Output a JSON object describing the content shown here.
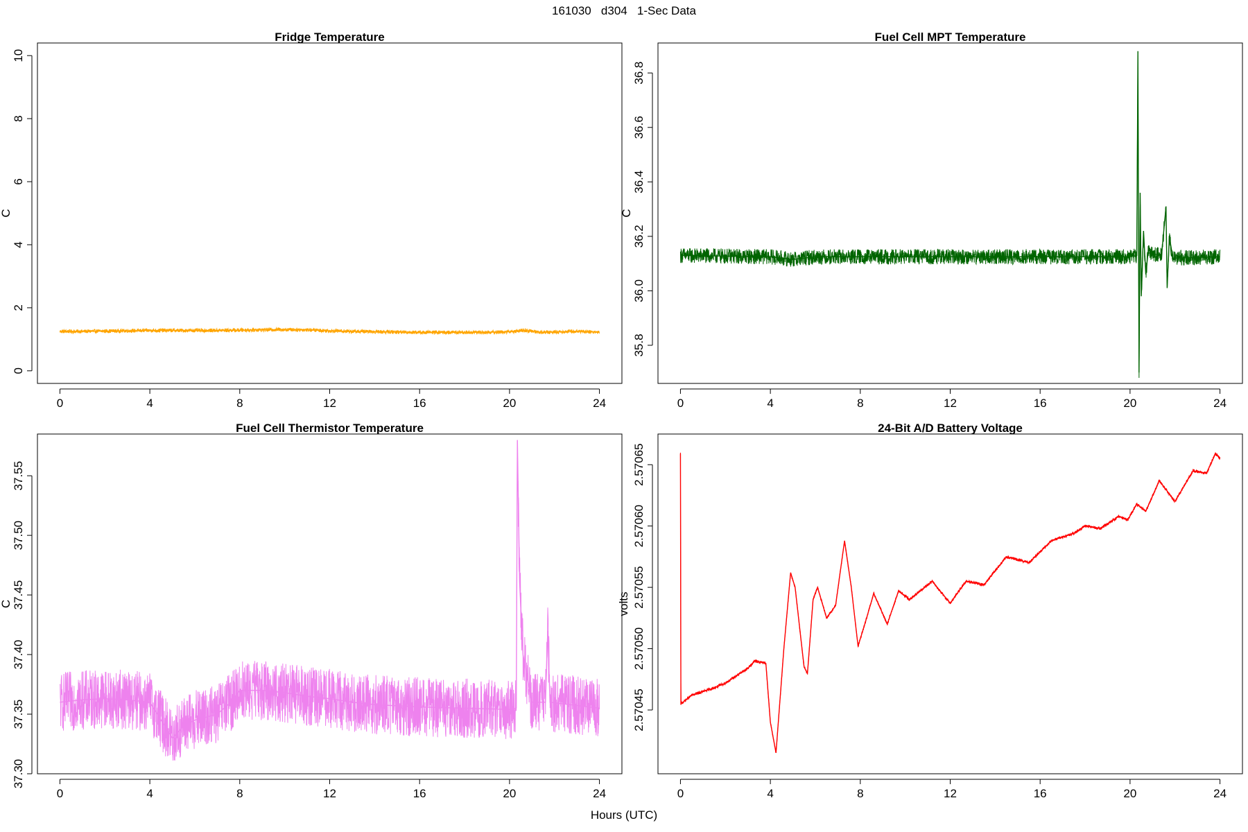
{
  "main_title": "161030   d304   1-Sec Data",
  "x_axis_title": "Hours (UTC)",
  "colors": {
    "fridge": "#FFA500",
    "mpt": "#006400",
    "thermistor": "#EE82EE",
    "battery": "#FF0000",
    "axis": "#000000"
  },
  "chart_data": [
    {
      "type": "line",
      "title": "Fridge Temperature",
      "ylabel": "C",
      "xlabel": "",
      "xlim": [
        -1.0,
        25.0
      ],
      "ylim": [
        -0.4,
        10.4
      ],
      "xticks": [
        0,
        4,
        8,
        12,
        16,
        20,
        24
      ],
      "yticks": [
        0,
        2,
        4,
        6,
        8,
        10
      ],
      "ytick_labels": [
        "0",
        "2",
        "4",
        "6",
        "8",
        "10"
      ],
      "grid": false,
      "series": [
        {
          "color": "#FFA500",
          "points": [
            [
              0,
              1.25
            ],
            [
              1,
              1.25
            ],
            [
              2,
              1.26
            ],
            [
              3,
              1.27
            ],
            [
              4,
              1.28
            ],
            [
              5,
              1.28
            ],
            [
              6,
              1.28
            ],
            [
              7,
              1.28
            ],
            [
              8,
              1.29
            ],
            [
              9,
              1.3
            ],
            [
              10,
              1.31
            ],
            [
              11,
              1.3
            ],
            [
              12,
              1.27
            ],
            [
              13,
              1.25
            ],
            [
              14,
              1.24
            ],
            [
              15,
              1.23
            ],
            [
              16,
              1.22
            ],
            [
              17,
              1.22
            ],
            [
              18,
              1.22
            ],
            [
              19,
              1.22
            ],
            [
              20,
              1.24
            ],
            [
              20.7,
              1.28
            ],
            [
              21.5,
              1.22
            ],
            [
              22,
              1.23
            ],
            [
              23,
              1.26
            ],
            [
              24,
              1.22
            ]
          ],
          "noise": 0.06
        }
      ]
    },
    {
      "type": "line",
      "title": "Fuel Cell MPT Temperature",
      "ylabel": "C",
      "xlabel": "",
      "xlim": [
        -1.0,
        25.0
      ],
      "ylim": [
        35.66,
        36.91
      ],
      "xticks": [
        0,
        4,
        8,
        12,
        16,
        20,
        24
      ],
      "yticks": [
        35.8,
        36.0,
        36.2,
        36.4,
        36.6,
        36.8
      ],
      "ytick_labels": [
        "35.8",
        "36.0",
        "36.2",
        "36.4",
        "36.6",
        "36.8"
      ],
      "grid": false,
      "series": [
        {
          "color": "#006400",
          "points": [
            [
              0,
              36.13
            ],
            [
              4,
              36.125
            ],
            [
              4.5,
              36.12
            ],
            [
              5,
              36.115
            ],
            [
              6,
              36.125
            ],
            [
              8,
              36.125
            ],
            [
              12,
              36.125
            ],
            [
              16,
              36.125
            ],
            [
              20,
              36.125
            ],
            [
              20.3,
              36.13
            ],
            [
              20.35,
              36.88
            ],
            [
              20.4,
              35.7
            ],
            [
              20.45,
              36.36
            ],
            [
              20.5,
              35.98
            ],
            [
              20.6,
              36.22
            ],
            [
              20.7,
              36.06
            ],
            [
              20.8,
              36.14
            ],
            [
              21.4,
              36.13
            ],
            [
              21.6,
              36.31
            ],
            [
              21.65,
              36.01
            ],
            [
              21.75,
              36.2
            ],
            [
              21.9,
              36.12
            ],
            [
              24,
              36.125
            ]
          ],
          "noise": 0.028
        }
      ]
    },
    {
      "type": "line",
      "title": "Fuel Cell Thermistor Temperature",
      "ylabel": "C",
      "xlabel": "",
      "xlim": [
        -1.0,
        25.0
      ],
      "ylim": [
        37.3,
        37.585
      ],
      "xticks": [
        0,
        4,
        8,
        12,
        16,
        20,
        24
      ],
      "yticks": [
        37.3,
        37.35,
        37.4,
        37.45,
        37.5,
        37.55
      ],
      "ytick_labels": [
        "37.30",
        "37.35",
        "37.40",
        "37.45",
        "37.50",
        "37.55"
      ],
      "grid": false,
      "series": [
        {
          "color": "#EE82EE",
          "points": [
            [
              0,
              37.36
            ],
            [
              1,
              37.362
            ],
            [
              2,
              37.363
            ],
            [
              3,
              37.362
            ],
            [
              4,
              37.36
            ],
            [
              4.5,
              37.345
            ],
            [
              5,
              37.33
            ],
            [
              5.5,
              37.34
            ],
            [
              6,
              37.345
            ],
            [
              7,
              37.35
            ],
            [
              7.6,
              37.36
            ],
            [
              8,
              37.37
            ],
            [
              9,
              37.37
            ],
            [
              10,
              37.368
            ],
            [
              11,
              37.365
            ],
            [
              12,
              37.363
            ],
            [
              13,
              37.36
            ],
            [
              14,
              37.358
            ],
            [
              16,
              37.356
            ],
            [
              18,
              37.355
            ],
            [
              20,
              37.354
            ],
            [
              20.3,
              37.355
            ],
            [
              20.35,
              37.58
            ],
            [
              20.45,
              37.46
            ],
            [
              20.6,
              37.4
            ],
            [
              21,
              37.36
            ],
            [
              21.6,
              37.36
            ],
            [
              21.7,
              37.42
            ],
            [
              21.8,
              37.36
            ],
            [
              24,
              37.355
            ]
          ],
          "noise": 0.025
        }
      ]
    },
    {
      "type": "line",
      "title": "24-Bit A/D Battery Voltage",
      "ylabel": "volts",
      "xlabel": "",
      "xlim": [
        -1.0,
        25.0
      ],
      "ylim": [
        2.570398,
        2.570675
      ],
      "xticks": [
        0,
        4,
        8,
        12,
        16,
        20,
        24
      ],
      "yticks": [
        2.57045,
        2.5705,
        2.57055,
        2.5706,
        2.57065
      ],
      "ytick_labels": [
        "2.57045",
        "2.57050",
        "2.57055",
        "2.57060",
        "2.57065"
      ],
      "grid": false,
      "series": [
        {
          "color": "#FF0000",
          "points": [
            [
              0,
              2.570659
            ],
            [
              0.02,
              2.570455
            ],
            [
              0.5,
              2.570462
            ],
            [
              1,
              2.570465
            ],
            [
              1.5,
              2.570468
            ],
            [
              2,
              2.570472
            ],
            [
              2.5,
              2.570478
            ],
            [
              3,
              2.570484
            ],
            [
              3.3,
              2.57049
            ],
            [
              3.8,
              2.570488
            ],
            [
              4.0,
              2.57044
            ],
            [
              4.25,
              2.570415
            ],
            [
              4.6,
              2.5705
            ],
            [
              4.9,
              2.570562
            ],
            [
              5.1,
              2.57055
            ],
            [
              5.5,
              2.570485
            ],
            [
              5.65,
              2.57048
            ],
            [
              5.9,
              2.57054
            ],
            [
              6.1,
              2.57055
            ],
            [
              6.5,
              2.570525
            ],
            [
              6.9,
              2.570535
            ],
            [
              7.3,
              2.570588
            ],
            [
              7.6,
              2.57055
            ],
            [
              7.9,
              2.570502
            ],
            [
              8.2,
              2.57052
            ],
            [
              8.6,
              2.570545
            ],
            [
              9.2,
              2.57052
            ],
            [
              9.7,
              2.570547
            ],
            [
              10.2,
              2.57054
            ],
            [
              11.2,
              2.570555
            ],
            [
              12,
              2.570537
            ],
            [
              12.7,
              2.570555
            ],
            [
              13.5,
              2.570552
            ],
            [
              14.5,
              2.570575
            ],
            [
              15.5,
              2.57057
            ],
            [
              16.5,
              2.570588
            ],
            [
              17.5,
              2.570594
            ],
            [
              18,
              2.5706
            ],
            [
              18.7,
              2.570598
            ],
            [
              19.5,
              2.570608
            ],
            [
              19.9,
              2.570605
            ],
            [
              20.3,
              2.570618
            ],
            [
              20.7,
              2.570612
            ],
            [
              21.3,
              2.570637
            ],
            [
              22.0,
              2.57062
            ],
            [
              22.8,
              2.570645
            ],
            [
              23.4,
              2.570643
            ],
            [
              23.8,
              2.570659
            ],
            [
              24,
              2.570655
            ]
          ],
          "noise": 1.2e-06
        }
      ]
    }
  ]
}
